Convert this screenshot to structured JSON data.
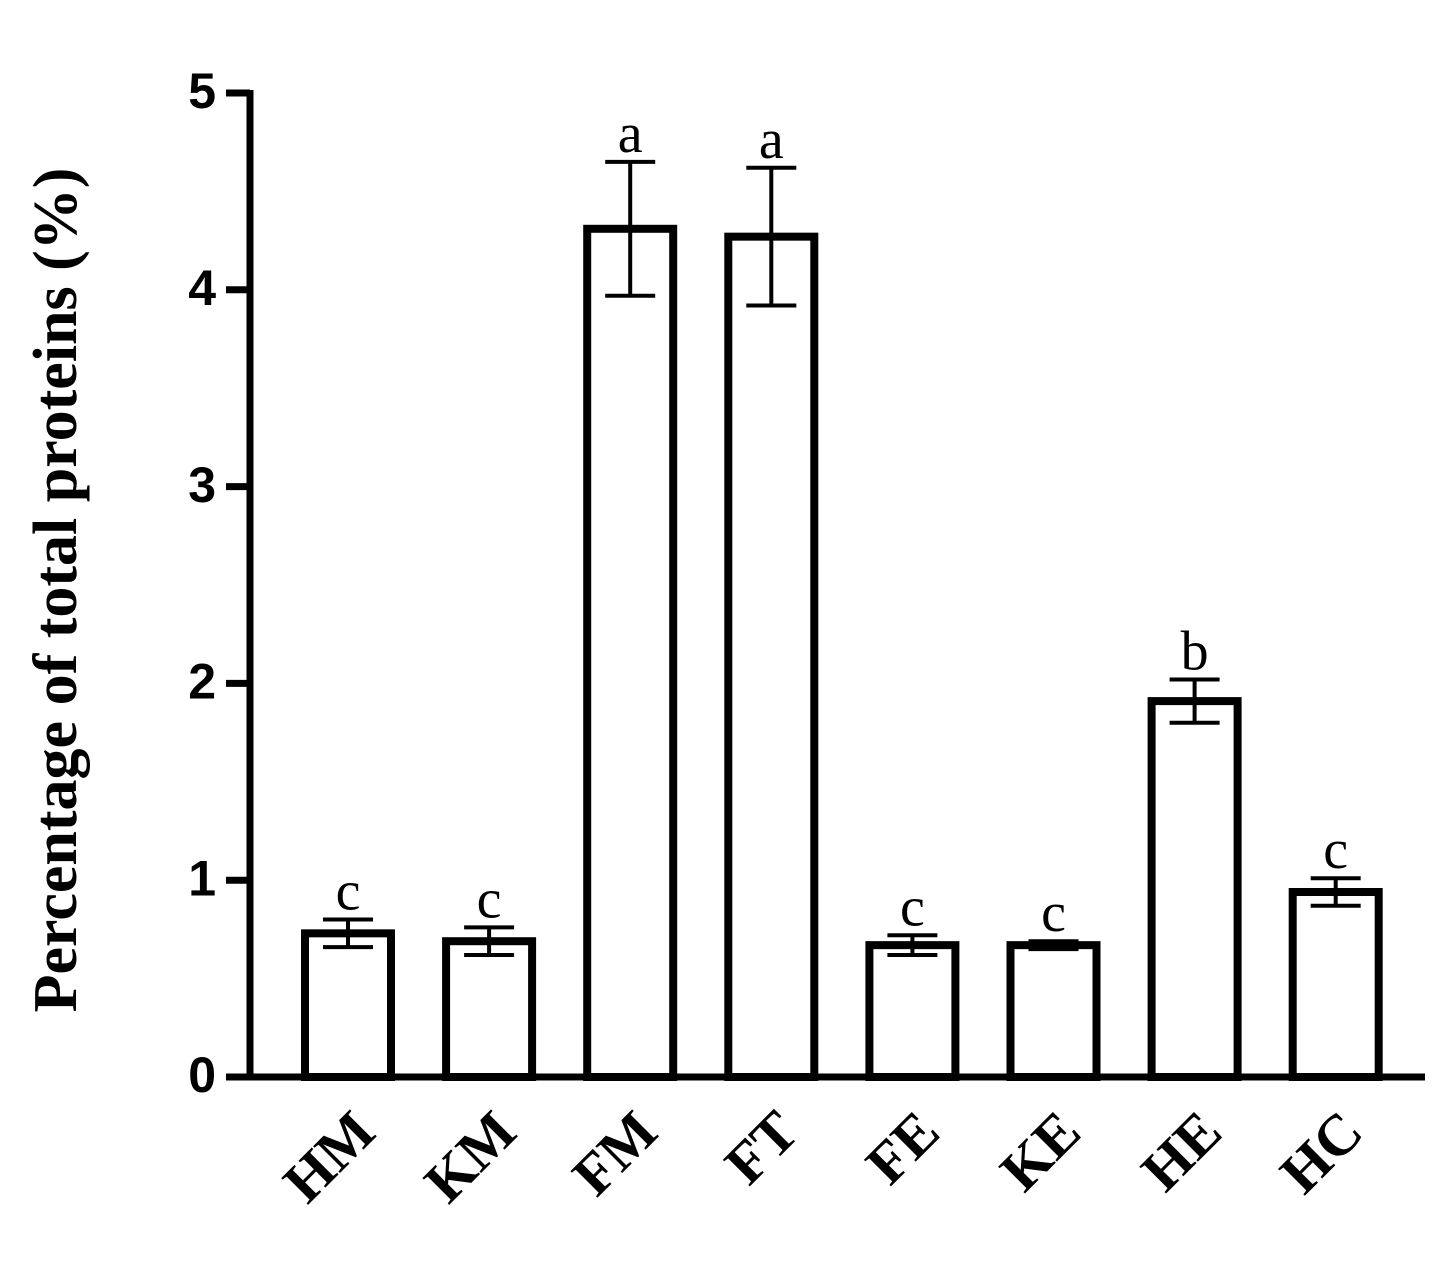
{
  "chart_data": {
    "type": "bar",
    "ylabel": "Percentage of total proteins (%)",
    "categories": [
      "HM",
      "KM",
      "FM",
      "FT",
      "FE",
      "KE",
      "HE",
      "HC"
    ],
    "values": [
      0.73,
      0.69,
      4.31,
      4.27,
      0.67,
      0.67,
      1.91,
      0.94
    ],
    "errors": [
      0.07,
      0.07,
      0.34,
      0.35,
      0.05,
      0.02,
      0.11,
      0.07
    ],
    "letters": [
      "c",
      "c",
      "a",
      "a",
      "c",
      "c",
      "b",
      "c"
    ],
    "color": "#ffffff",
    "edgecolor": "#000000",
    "ylim": [
      0,
      5
    ],
    "yticks": [
      0,
      1,
      2,
      3,
      4,
      5
    ],
    "grid": false
  }
}
